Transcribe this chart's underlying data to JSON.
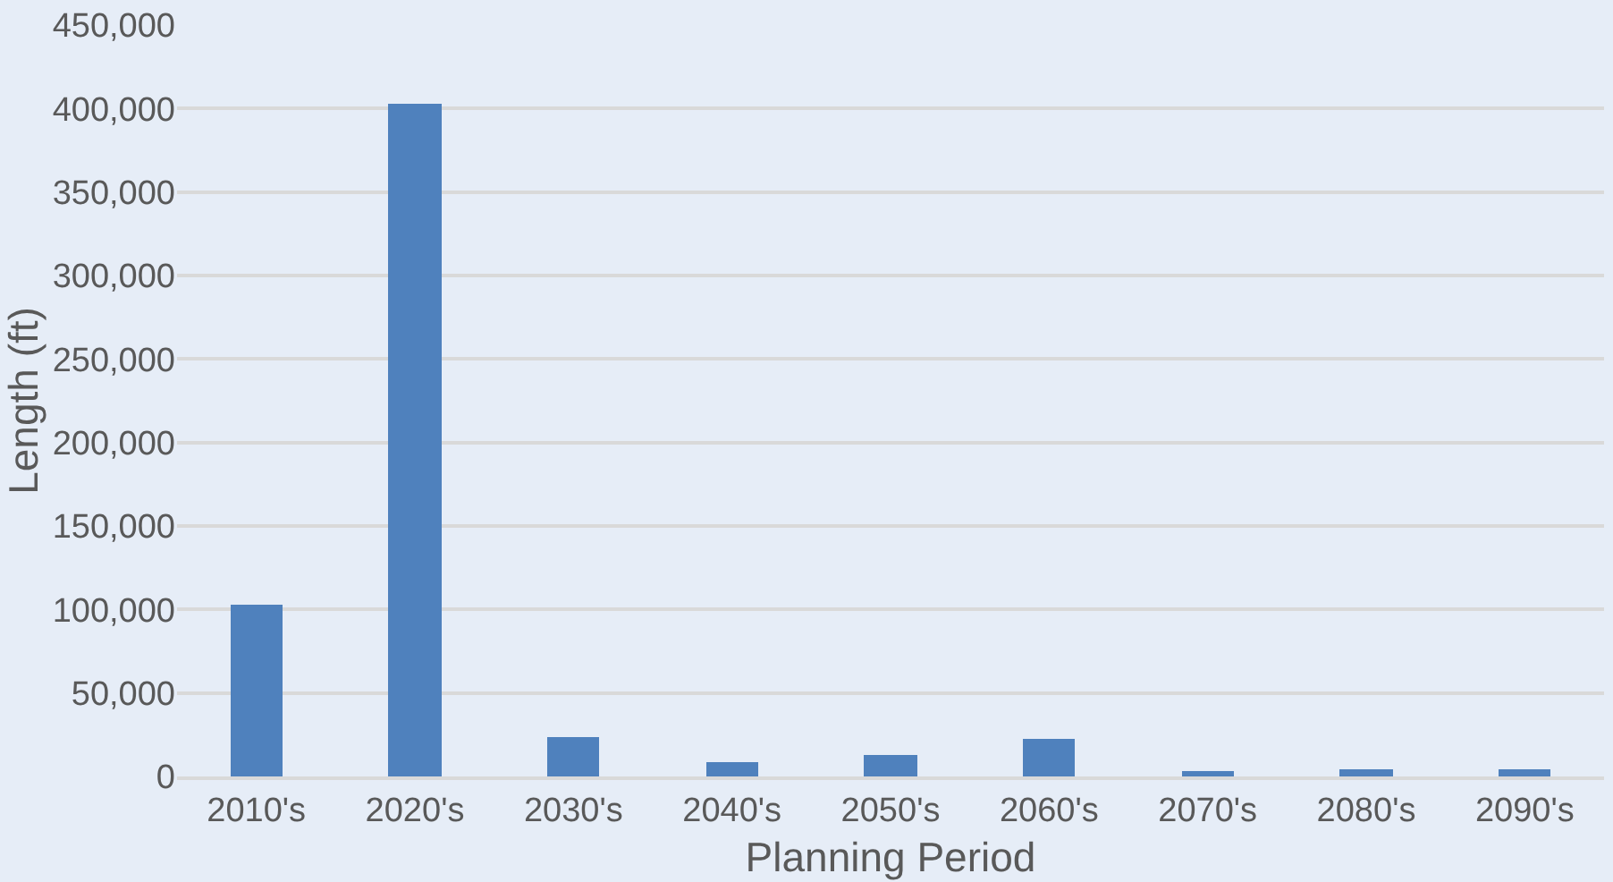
{
  "chart_data": {
    "type": "bar",
    "xlabel": "Planning Period",
    "ylabel": "Length (ft)",
    "categories": [
      "2010's",
      "2020's",
      "2030's",
      "2040's",
      "2050's",
      "2060's",
      "2070's",
      "2080's",
      "2090's"
    ],
    "values": [
      103000,
      403000,
      24000,
      9000,
      13000,
      23000,
      3000,
      4000,
      4000
    ],
    "color": "#4f81bd",
    "ylim": [
      0,
      450000
    ],
    "yticks": [
      {
        "value": 0,
        "label": "0"
      },
      {
        "value": 50000,
        "label": "50,000"
      },
      {
        "value": 100000,
        "label": "100,000"
      },
      {
        "value": 150000,
        "label": "150,000"
      },
      {
        "value": 200000,
        "label": "200,000"
      },
      {
        "value": 250000,
        "label": "250,000"
      },
      {
        "value": 300000,
        "label": "300,000"
      },
      {
        "value": 350000,
        "label": "350,000"
      },
      {
        "value": 400000,
        "label": "400,000"
      },
      {
        "value": 450000,
        "label": "450,000"
      }
    ],
    "grid": "y"
  }
}
